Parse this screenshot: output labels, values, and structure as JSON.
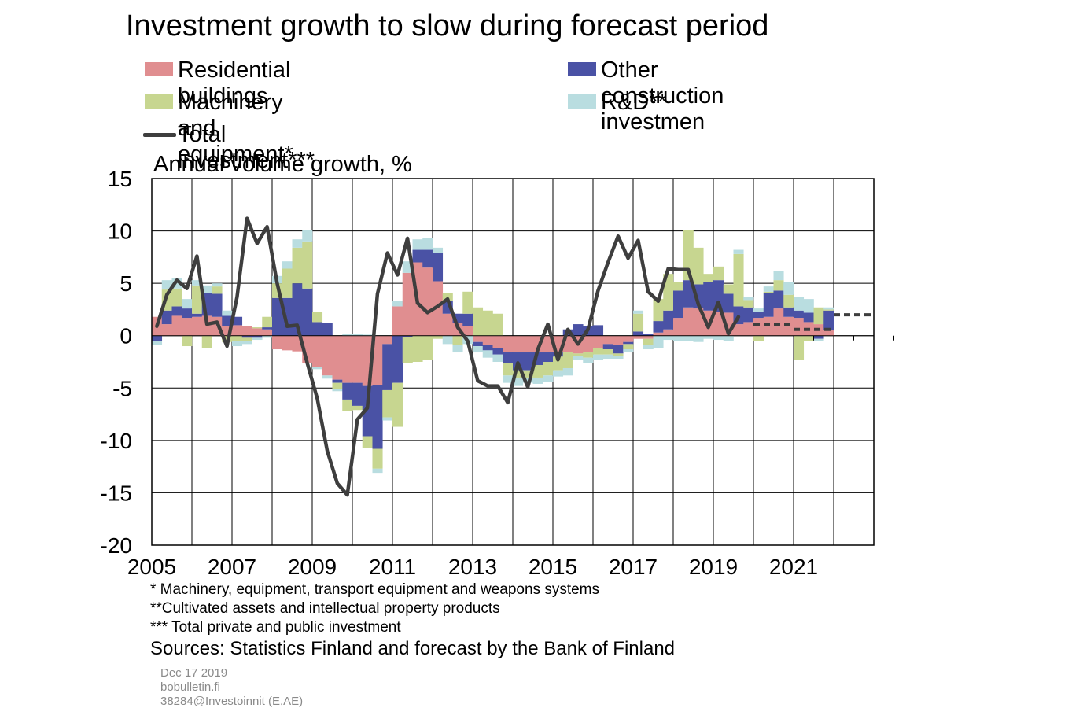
{
  "title": "Investment growth to slow during forecast period",
  "legend": [
    {
      "label": "Residential buildings",
      "color": "#e08e90",
      "kind": "bar"
    },
    {
      "label": "Other construction investmen",
      "color": "#4a52a5",
      "kind": "bar"
    },
    {
      "label": "Machinery and equipment*",
      "color": "#c7d690",
      "kind": "bar"
    },
    {
      "label": "R&D**",
      "color": "#b9dde0",
      "kind": "bar"
    },
    {
      "label": "Total investment***",
      "color": "#3e3e3e",
      "kind": "line"
    }
  ],
  "units_label": "Annual volume growth, %",
  "footnotes": [
    "* Machinery, equipment, transport equipment and weapons systems",
    "**Cultivated assets and intellectual property products",
    "*** Total private and public investment"
  ],
  "sources": "Sources: Statistics Finland and forecast by the Bank of Finland",
  "meta": {
    "date": "Dec 17 2019",
    "site": "bobulletin.fi",
    "code": "38284@Investoinnit  (E,AE)"
  },
  "chart_data": {
    "type": "bar",
    "stacked": true,
    "frequency": "quarterly",
    "x_start": "2005Q1",
    "x_end": "2022Q4",
    "x_tick_labels": [
      "2005",
      "2007",
      "2009",
      "2011",
      "2013",
      "2015",
      "2017",
      "2019",
      "2021"
    ],
    "ylim": [
      -20,
      15
    ],
    "y_ticks": [
      15,
      10,
      5,
      0,
      -5,
      -10,
      -15,
      -20
    ],
    "grid": true,
    "legend_position": "top",
    "series": [
      {
        "name": "Residential buildings",
        "color": "#e08e90",
        "values": [
          1.8,
          1.1,
          1.9,
          1.7,
          1.8,
          1.9,
          1.8,
          0.9,
          1.0,
          0.9,
          0.7,
          0.6,
          -1.3,
          -1.4,
          -1.5,
          -2.6,
          -3.0,
          -3.8,
          -4.2,
          -4.5,
          -4.5,
          -4.8,
          -4.7,
          -0.8,
          2.8,
          6.0,
          7.0,
          6.5,
          5.2,
          2.1,
          1.2,
          0.9,
          -0.6,
          -0.9,
          -1.2,
          -1.6,
          -1.6,
          -1.6,
          -1.6,
          -1.6,
          -1.6,
          -1.6,
          -1.7,
          -1.6,
          -1.2,
          -0.8,
          -0.9,
          -0.6,
          -0.3,
          -0.3,
          0.3,
          0.6,
          1.7,
          2.7,
          2.6,
          2.4,
          2.3,
          2.2,
          1.1,
          1.3,
          1.7,
          1.8,
          2.6,
          1.8,
          1.7,
          1.3,
          1.1,
          0.5
        ]
      },
      {
        "name": "Other construction investmen",
        "color": "#4a52a5",
        "values": [
          -0.5,
          1.3,
          0.9,
          0.9,
          0.3,
          2.2,
          2.2,
          1.0,
          0.8,
          -0.2,
          -0.2,
          0.2,
          3.6,
          3.6,
          5.0,
          4.5,
          1.3,
          1.2,
          -0.3,
          -1.6,
          -2.2,
          -4.8,
          -6.1,
          -4.4,
          -4.5,
          -0.1,
          1.2,
          1.7,
          2.7,
          1.2,
          0.9,
          1.2,
          -0.4,
          -0.5,
          -0.6,
          -1.0,
          -1.7,
          -1.7,
          -1.2,
          -0.9,
          -0.4,
          0.6,
          1.1,
          0.9,
          1.0,
          -0.5,
          -0.8,
          -0.2,
          0.4,
          0.2,
          1.1,
          1.8,
          2.6,
          2.6,
          2.3,
          2.7,
          3.0,
          1.8,
          1.7,
          1.4,
          0.6,
          2.3,
          1.7,
          0.9,
          0.7,
          0.9,
          -0.3,
          1.9
        ]
      },
      {
        "name": "Machinery and equipment*",
        "color": "#c7d690",
        "values": [
          0.0,
          2.0,
          1.7,
          -1.0,
          2.7,
          -1.2,
          0.7,
          -0.6,
          -0.5,
          -0.3,
          0.1,
          1.0,
          1.4,
          2.8,
          3.4,
          4.5,
          1.0,
          0.0,
          -0.6,
          -1.1,
          -0.4,
          -1.1,
          -1.9,
          -2.6,
          -4.2,
          -2.5,
          -2.5,
          -2.3,
          -0.3,
          0.8,
          -0.9,
          2.1,
          2.7,
          2.4,
          2.1,
          -1.2,
          -0.7,
          -0.7,
          -1.2,
          -1.3,
          -1.3,
          -1.5,
          -0.2,
          -0.5,
          -0.6,
          -0.5,
          -0.2,
          -0.5,
          1.7,
          -0.6,
          2.1,
          3.5,
          0.8,
          4.8,
          3.5,
          0.8,
          1.3,
          0.9,
          5.0,
          0.7,
          -0.5,
          0.1,
          1.0,
          1.2,
          -2.3,
          -0.5,
          1.6,
          0.1
        ]
      },
      {
        "name": "R&D**",
        "color": "#b9dde0",
        "values": [
          -0.4,
          0.9,
          1.0,
          0.9,
          0.5,
          0.7,
          0.3,
          0.5,
          -0.5,
          -0.3,
          -0.2,
          -0.2,
          0.7,
          0.7,
          0.8,
          1.1,
          -0.2,
          -0.3,
          -0.2,
          0.2,
          0.2,
          0.1,
          -0.4,
          -0.3,
          0.5,
          1.1,
          1.0,
          1.1,
          0.5,
          -0.8,
          -0.7,
          -0.8,
          -0.6,
          -0.7,
          -0.7,
          -0.7,
          -0.8,
          -0.5,
          -0.6,
          -0.6,
          -0.6,
          -0.7,
          -0.4,
          -0.5,
          -0.5,
          -0.4,
          -0.3,
          -0.3,
          0.3,
          -0.4,
          -1.2,
          -0.4,
          -0.5,
          -0.5,
          -0.6,
          -0.3,
          -0.4,
          -0.5,
          0.4,
          0.3,
          0.3,
          0.5,
          0.9,
          1.2,
          1.3,
          1.3,
          -0.2,
          0.2
        ]
      },
      {
        "name": "Total investment***",
        "color": "#3e3e3e",
        "kind": "line",
        "values": [
          0.9,
          3.9,
          5.3,
          4.5,
          7.6,
          1.1,
          1.3,
          -1.0,
          3.7,
          11.2,
          8.8,
          10.4,
          5.0,
          0.9,
          1.0,
          -2.6,
          -6.0,
          -11.0,
          -14.1,
          -15.2,
          -8.0,
          -6.9,
          4.0,
          7.9,
          5.8,
          9.3,
          3.1,
          2.2,
          2.8,
          3.5,
          0.8,
          -0.5,
          -4.3,
          -4.8,
          -4.8,
          -6.4,
          -2.6,
          -4.9,
          -1.3,
          1.1,
          -2.3,
          0.6,
          -0.8,
          0.6,
          4.3,
          7.0,
          9.5,
          7.4,
          9.1,
          4.2,
          3.3,
          6.4,
          6.3,
          6.3,
          3.0,
          0.8,
          3.2,
          0.2,
          1.8
        ]
      },
      {
        "name": "Total investment*** forecast",
        "color": "#3e3e3e",
        "kind": "dashed",
        "segments": [
          {
            "from": "2020Q1",
            "to": "2020Q4",
            "value": 1.1
          },
          {
            "from": "2021Q1",
            "to": "2021Q4",
            "value": 0.6
          },
          {
            "from": "2022Q1",
            "to": "2022Q4",
            "value": 2.0
          }
        ]
      }
    ]
  }
}
